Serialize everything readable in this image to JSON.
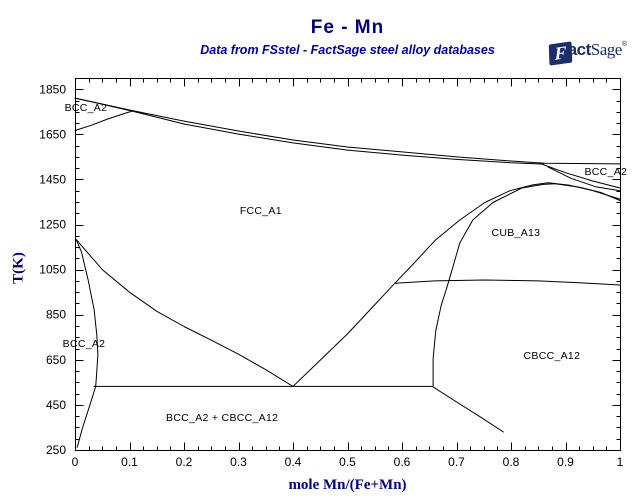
{
  "page": {
    "title": "Fe - Mn",
    "subtitle": "Data from FSstel - FactSage steel alloy databases"
  },
  "logo": {
    "f": "F",
    "act": "act",
    "sage": "Sage",
    "mark": "®"
  },
  "colors": {
    "accent": "#000080",
    "curve": "#000000",
    "logo": "#1c2e6b"
  },
  "chart_data": {
    "type": "line",
    "title": "Fe - Mn",
    "subtitle": "Data from FSstel - FactSage steel alloy databases",
    "xlabel": "mole Mn/(Fe+Mn)",
    "ylabel": "T(K)",
    "xlim": [
      0,
      1
    ],
    "ylim": [
      250,
      1900
    ],
    "grid": false,
    "x_major_ticks": [
      0,
      0.1,
      0.2,
      0.3,
      0.4,
      0.5,
      0.6,
      0.7,
      0.8,
      0.9,
      1
    ],
    "x_tick_labels": [
      "0",
      "0.1",
      "0.2",
      "0.3",
      "0.4",
      "0.5",
      "0.6",
      "0.7",
      "0.8",
      "0.9",
      "1"
    ],
    "x_minor_step": 0.025,
    "y_major_ticks": [
      250,
      450,
      650,
      850,
      1050,
      1250,
      1450,
      1650,
      1850
    ],
    "y_tick_labels": [
      "250",
      "450",
      "650",
      "850",
      "1050",
      "1250",
      "1450",
      "1650",
      "1850"
    ],
    "y_minor_step": 50,
    "series": [
      {
        "name": "liquidus",
        "points": [
          [
            0,
            1811
          ],
          [
            0.1,
            1758
          ],
          [
            0.2,
            1709
          ],
          [
            0.3,
            1665
          ],
          [
            0.4,
            1625
          ],
          [
            0.5,
            1594
          ],
          [
            0.6,
            1572
          ],
          [
            0.7,
            1550
          ],
          [
            0.8,
            1532
          ],
          [
            0.862,
            1522
          ],
          [
            1,
            1519
          ]
        ]
      },
      {
        "name": "gamma-solidus",
        "points": [
          [
            0.105,
            1753
          ],
          [
            0.2,
            1696
          ],
          [
            0.3,
            1651
          ],
          [
            0.4,
            1612
          ],
          [
            0.5,
            1580
          ],
          [
            0.6,
            1558
          ],
          [
            0.7,
            1539
          ],
          [
            0.8,
            1524
          ],
          [
            0.86,
            1518
          ]
        ]
      },
      {
        "name": "delta-solidus-lens-upper",
        "points": [
          [
            0,
            1811
          ],
          [
            0.03,
            1795
          ],
          [
            0.06,
            1778
          ],
          [
            0.09,
            1761
          ],
          [
            0.105,
            1753
          ]
        ]
      },
      {
        "name": "delta-gamma-lens-lower",
        "points": [
          [
            0,
            1667
          ],
          [
            0.03,
            1690
          ],
          [
            0.06,
            1718
          ],
          [
            0.09,
            1742
          ],
          [
            0.105,
            1753
          ]
        ]
      },
      {
        "name": "delta-boundary-upper-right",
        "points": [
          [
            0.859,
            1516
          ],
          [
            0.9,
            1480
          ],
          [
            0.95,
            1443
          ],
          [
            1,
            1412
          ]
        ]
      },
      {
        "name": "gamma-boundary-upper-right",
        "points": [
          [
            0.868,
            1505
          ],
          [
            0.91,
            1455
          ],
          [
            0.955,
            1418
          ],
          [
            1,
            1400
          ]
        ]
      },
      {
        "name": "a3-gamma-alpha",
        "points": [
          [
            0.002,
            1184
          ],
          [
            0.05,
            1050
          ],
          [
            0.1,
            950
          ],
          [
            0.15,
            865
          ],
          [
            0.2,
            798
          ],
          [
            0.25,
            737
          ],
          [
            0.3,
            675
          ],
          [
            0.35,
            606
          ],
          [
            0.4,
            532
          ]
        ]
      },
      {
        "name": "gamma-cbcc-left",
        "points": [
          [
            0.4,
            532
          ],
          [
            0.5,
            765
          ],
          [
            0.587,
            990
          ]
        ]
      },
      {
        "name": "alpha-solvus-upper",
        "points": [
          [
            0.002,
            1184
          ],
          [
            0.012,
            1128
          ],
          [
            0.024,
            1005
          ],
          [
            0.035,
            873
          ],
          [
            0.04,
            760
          ],
          [
            0.042,
            675
          ],
          [
            0.04,
            598
          ],
          [
            0.038,
            532
          ]
        ]
      },
      {
        "name": "alpha-solvus-lower",
        "points": [
          [
            0.038,
            532
          ],
          [
            0.026,
            440
          ],
          [
            0.014,
            350
          ],
          [
            0.004,
            262
          ]
        ]
      },
      {
        "name": "eutectoid-532K",
        "points": [
          [
            0.035,
            532
          ],
          [
            0.657,
            532
          ]
        ]
      },
      {
        "name": "cbcc-solvus-left",
        "points": [
          [
            0.657,
            532
          ],
          [
            0.657,
            655
          ],
          [
            0.662,
            780
          ],
          [
            0.672,
            892
          ],
          [
            0.682,
            968
          ]
        ]
      },
      {
        "name": "cbcc-lower-boundary",
        "points": [
          [
            0.657,
            530
          ],
          [
            0.706,
            454
          ],
          [
            0.744,
            396
          ],
          [
            0.786,
            330
          ]
        ]
      },
      {
        "name": "cub-cbcc-990K",
        "points": [
          [
            0.587,
            990
          ],
          [
            0.66,
            1000
          ],
          [
            0.75,
            1004
          ],
          [
            0.85,
            1000
          ],
          [
            0.93,
            991
          ],
          [
            1,
            982
          ]
        ]
      },
      {
        "name": "gamma-cub-gamma-side",
        "points": [
          [
            0.587,
            990
          ],
          [
            0.624,
            1084
          ],
          [
            0.661,
            1180
          ],
          [
            0.706,
            1270
          ],
          [
            0.752,
            1348
          ],
          [
            0.798,
            1400
          ],
          [
            0.84,
            1426
          ],
          [
            0.868,
            1435
          ],
          [
            0.908,
            1424
          ],
          [
            0.95,
            1400
          ],
          [
            1,
            1363
          ]
        ]
      },
      {
        "name": "gamma-cub-cub-side",
        "points": [
          [
            0.682,
            968
          ],
          [
            0.692,
            1050
          ],
          [
            0.706,
            1168
          ],
          [
            0.73,
            1270
          ],
          [
            0.767,
            1348
          ],
          [
            0.82,
            1412
          ],
          [
            0.859,
            1428
          ],
          [
            0.881,
            1431
          ],
          [
            0.925,
            1416
          ],
          [
            0.965,
            1392
          ],
          [
            1,
            1356
          ]
        ]
      }
    ],
    "annotations": [
      {
        "text": "BCC_A2",
        "x": 0.02,
        "T": 1767
      },
      {
        "text": "FCC_A1",
        "x": 0.341,
        "T": 1311
      },
      {
        "text": "CUB_A13",
        "x": 0.809,
        "T": 1213
      },
      {
        "text": "BCC_A2",
        "x": 0.974,
        "T": 1483
      },
      {
        "text": "CBCC_A12",
        "x": 0.875,
        "T": 667
      },
      {
        "text": "BCC_A2",
        "x": 0.0165,
        "T": 720
      },
      {
        "text": "BCC_A2 + CBCC_A12",
        "x": 0.27,
        "T": 392
      }
    ]
  }
}
